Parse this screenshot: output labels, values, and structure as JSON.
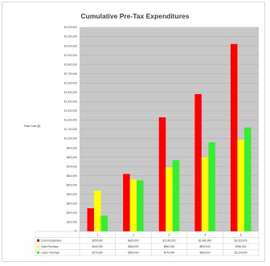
{
  "chart_data": {
    "type": "bar",
    "title": "Cumulative Pre-Tax Expenditures",
    "ylabel": "Total Cost ($)",
    "xlabel": "",
    "categories": [
      "1",
      "2",
      "3",
      "4",
      "5"
    ],
    "ylim": [
      0,
      2200000
    ],
    "yticks": [
      0,
      100000,
      200000,
      300000,
      400000,
      500000,
      600000,
      700000,
      800000,
      900000,
      1000000,
      1100000,
      1200000,
      1300000,
      1400000,
      1500000,
      1600000,
      1700000,
      1800000,
      1900000,
      2000000,
      2100000,
      2200000
    ],
    "ytick_labels": [
      "$0",
      "$100,000",
      "$200,000",
      "$300,000",
      "$400,000",
      "$500,000",
      "$600,000",
      "$700,000",
      "$800,000",
      "$900,000",
      "$1,000,000",
      "$1,100,000",
      "$1,200,000",
      "$1,300,000",
      "$1,400,000",
      "$1,500,000",
      "$1,600,000",
      "$1,700,000",
      "$1,800,000",
      "$1,900,000",
      "$2,000,000",
      "$2,100,000",
      "$2,200,000"
    ],
    "grid": true,
    "legend_placement": "table-below",
    "series": [
      {
        "name": "Current Expenses",
        "color": "#ff0000",
        "values": [
          250000,
          620000,
          1230000,
          1480000,
          2020000
        ],
        "table_values": [
          "$250,000",
          "$620,000",
          "$1,230,000",
          "$1,480,000",
          "$2,020,000"
        ]
      },
      {
        "name": "Cash Purchase",
        "color": "#ffff00",
        "values": [
          440000,
          560000,
          690000,
          800000,
          990000
        ],
        "table_values": [
          "$440,000",
          "$560,000",
          "$690,000",
          "$800,000",
          "$990,000"
        ]
      },
      {
        "name": "Lease Purchase",
        "color": "#33ee33",
        "values": [
          170000,
          550000,
          770000,
          960000,
          1120000
        ],
        "table_values": [
          "$170,000",
          "$550,000",
          "$770,000",
          "$960,000",
          "$1,120,000"
        ]
      }
    ],
    "plot_background": "#c8c8c8"
  }
}
